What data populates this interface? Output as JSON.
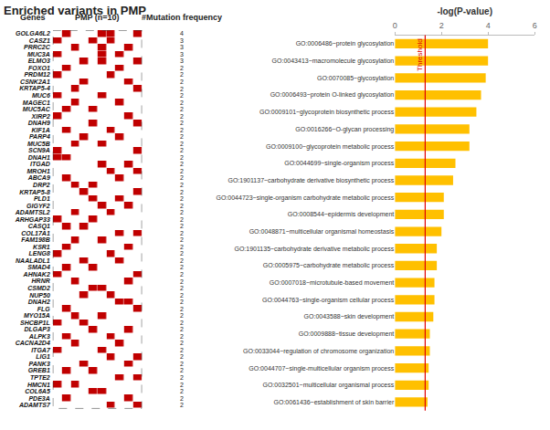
{
  "chart_data": [
    {
      "type": "heatmap",
      "title": "Enriched variants in PMP",
      "y_label": "Genes",
      "x_label": "PMP (n=10)",
      "frequency_label": "#Mutation frequency",
      "color": "#c00000",
      "tick_labels": "y",
      "categories": [
        "GOLGA6L2",
        "CASZ1",
        "PRRC2C",
        "MUC3A",
        "ELMO3",
        "FOXO1",
        "PRDM12",
        "CSNK2A1",
        "KRTAP5-4",
        "MUC6",
        "MAGEC1",
        "MUC5AC",
        "XIRP2",
        "DNAH9",
        "KIF1A",
        "PARP4",
        "MUC5B",
        "SCN9A",
        "DNAH1",
        "ITGAD",
        "MROH1",
        "ABCA9",
        "DRP2",
        "KRTAP5-8",
        "PLD1",
        "GIGYF2",
        "ADAMTSL2",
        "ARHGAP33",
        "CASQ1",
        "COL17A1",
        "FAM198B",
        "KSR1",
        "LENG8",
        "NAALADL1",
        "SMAD4",
        "AHNAK2",
        "HRNR",
        "CSMD2",
        "NUP50",
        "DNAH2",
        "FLG",
        "MYO15A",
        "SHCBP1L",
        "DLGAP3",
        "ALPK3",
        "CACNA2D4",
        "ITGA7",
        "LIG1",
        "PANK3",
        "GREB1",
        "TPTE2",
        "HMCN1",
        "COL6A5",
        "PDE3A",
        "ADAMTS7"
      ],
      "values": [
        4,
        3,
        3,
        3,
        3,
        2,
        2,
        2,
        2,
        2,
        2,
        2,
        2,
        2,
        2,
        2,
        2,
        2,
        2,
        2,
        2,
        2,
        2,
        2,
        2,
        2,
        2,
        2,
        2,
        2,
        2,
        2,
        2,
        2,
        2,
        2,
        2,
        2,
        2,
        2,
        2,
        2,
        2,
        2,
        2,
        2,
        2,
        2,
        2,
        2,
        2,
        2,
        2,
        2,
        2
      ],
      "cells": [
        [
          0,
          1,
          0,
          0,
          0,
          1,
          1,
          0,
          0,
          1
        ],
        [
          1,
          0,
          0,
          0,
          1,
          0,
          1,
          0,
          0,
          0
        ],
        [
          0,
          0,
          1,
          0,
          0,
          1,
          0,
          0,
          1,
          0
        ],
        [
          1,
          0,
          0,
          0,
          0,
          1,
          0,
          1,
          0,
          0
        ],
        [
          0,
          0,
          0,
          1,
          0,
          1,
          0,
          0,
          0,
          1
        ],
        [
          0,
          1,
          0,
          0,
          0,
          0,
          0,
          1,
          0,
          0
        ],
        [
          1,
          0,
          0,
          0,
          0,
          0,
          1,
          0,
          0,
          0
        ],
        [
          0,
          0,
          0,
          1,
          0,
          0,
          0,
          0,
          1,
          0
        ],
        [
          0,
          0,
          1,
          0,
          0,
          0,
          0,
          0,
          0,
          1
        ],
        [
          1,
          0,
          0,
          0,
          0,
          1,
          0,
          0,
          0,
          0
        ],
        [
          0,
          0,
          1,
          0,
          0,
          0,
          0,
          1,
          0,
          0
        ],
        [
          0,
          1,
          0,
          0,
          1,
          0,
          0,
          0,
          0,
          0
        ],
        [
          1,
          0,
          0,
          0,
          0,
          0,
          0,
          0,
          1,
          0
        ],
        [
          0,
          0,
          0,
          0,
          1,
          0,
          0,
          0,
          0,
          1
        ],
        [
          0,
          1,
          0,
          0,
          0,
          0,
          1,
          0,
          0,
          0
        ],
        [
          0,
          0,
          0,
          1,
          0,
          0,
          0,
          1,
          0,
          0
        ],
        [
          0,
          0,
          1,
          0,
          0,
          1,
          0,
          0,
          0,
          0
        ],
        [
          1,
          0,
          0,
          0,
          0,
          0,
          0,
          0,
          0,
          1
        ],
        [
          1,
          1,
          0,
          0,
          0,
          0,
          0,
          0,
          0,
          0
        ],
        [
          0,
          0,
          0,
          0,
          0,
          1,
          0,
          0,
          1,
          0
        ],
        [
          0,
          0,
          0,
          0,
          0,
          0,
          1,
          0,
          0,
          1
        ],
        [
          0,
          1,
          0,
          0,
          0,
          0,
          0,
          1,
          0,
          0
        ],
        [
          0,
          0,
          1,
          0,
          1,
          0,
          0,
          0,
          0,
          0
        ],
        [
          0,
          0,
          0,
          1,
          0,
          0,
          0,
          0,
          0,
          1
        ],
        [
          0,
          0,
          0,
          0,
          1,
          0,
          0,
          1,
          0,
          0
        ],
        [
          0,
          0,
          0,
          0,
          0,
          1,
          0,
          0,
          1,
          0
        ],
        [
          0,
          0,
          1,
          0,
          0,
          0,
          1,
          0,
          0,
          0
        ],
        [
          1,
          0,
          0,
          0,
          1,
          0,
          0,
          0,
          0,
          0
        ],
        [
          0,
          1,
          0,
          1,
          0,
          0,
          0,
          0,
          0,
          0
        ],
        [
          0,
          0,
          0,
          0,
          0,
          0,
          0,
          1,
          0,
          1
        ],
        [
          0,
          0,
          1,
          0,
          0,
          1,
          0,
          0,
          0,
          0
        ],
        [
          0,
          1,
          0,
          0,
          0,
          0,
          0,
          0,
          1,
          0
        ],
        [
          1,
          0,
          0,
          0,
          0,
          0,
          1,
          0,
          0,
          0
        ],
        [
          0,
          0,
          0,
          1,
          0,
          0,
          0,
          1,
          0,
          0
        ],
        [
          0,
          1,
          0,
          0,
          1,
          0,
          0,
          0,
          0,
          0
        ],
        [
          1,
          0,
          0,
          0,
          0,
          0,
          0,
          0,
          0,
          1
        ],
        [
          0,
          0,
          1,
          0,
          0,
          0,
          0,
          0,
          1,
          0
        ],
        [
          0,
          0,
          0,
          0,
          1,
          1,
          0,
          0,
          0,
          0
        ],
        [
          0,
          0,
          0,
          1,
          0,
          0,
          1,
          0,
          0,
          0
        ],
        [
          0,
          0,
          0,
          0,
          0,
          0,
          0,
          1,
          1,
          0
        ],
        [
          0,
          1,
          0,
          0,
          0,
          0,
          0,
          0,
          0,
          1
        ],
        [
          0,
          0,
          1,
          0,
          0,
          1,
          0,
          0,
          0,
          0
        ],
        [
          1,
          0,
          0,
          1,
          0,
          0,
          0,
          0,
          0,
          0
        ],
        [
          0,
          0,
          0,
          0,
          1,
          0,
          0,
          0,
          1,
          0
        ],
        [
          0,
          1,
          0,
          0,
          0,
          0,
          1,
          0,
          0,
          0
        ],
        [
          0,
          0,
          1,
          0,
          0,
          0,
          0,
          1,
          0,
          0
        ],
        [
          1,
          0,
          0,
          0,
          0,
          1,
          0,
          0,
          0,
          0
        ],
        [
          0,
          0,
          0,
          0,
          0,
          0,
          1,
          0,
          0,
          1
        ],
        [
          0,
          0,
          0,
          1,
          0,
          0,
          0,
          0,
          1,
          0
        ],
        [
          0,
          1,
          0,
          0,
          1,
          0,
          0,
          0,
          0,
          0
        ],
        [
          0,
          0,
          0,
          0,
          0,
          0,
          0,
          1,
          0,
          1
        ],
        [
          1,
          0,
          1,
          0,
          0,
          0,
          0,
          0,
          0,
          0
        ],
        [
          0,
          0,
          0,
          0,
          1,
          1,
          0,
          0,
          0,
          0
        ],
        [
          0,
          1,
          0,
          0,
          0,
          0,
          0,
          0,
          1,
          0
        ],
        [
          0,
          0,
          0,
          0,
          0,
          0,
          1,
          0,
          0,
          1
        ]
      ]
    },
    {
      "type": "bar",
      "orientation": "horizontal",
      "x_label": "-log(P-value)",
      "color": "#ffc000",
      "xlim": [
        0,
        6
      ],
      "xticks": [
        0,
        2,
        4,
        6
      ],
      "threshold": {
        "value": 1.3,
        "label": "Threshold",
        "color": "#e00000"
      },
      "categories": [
        "GO:0006486~protein glycosylation",
        "GO:0043413~macromolecule glycosylation",
        "GO:0070085~glycosylation",
        "GO:0006493~protein O-linked glycosylation",
        "GO:0009101~glycoprotein biosynthetic process",
        "GO:0016266~O-glycan processing",
        "GO:0009100~glycoprotein metabolic process",
        "GO:0044699~single-organism process",
        "GO:1901137~carbohydrate derivative biosynthetic process",
        "GO:0044723~single-organism carbohydrate metabolic process",
        "GO:0008544~epidermis development",
        "GO:0048871~multicellular organismal homeostasis",
        "GO:1901135~carbohydrate derivative metabolic process",
        "GO:0005975~carbohydrate metabolic process",
        "GO:0007018~microtubule-based movement",
        "GO:0044763~single-organism cellular process",
        "GO:0043588~skin development",
        "GO:0009888~tissue development",
        "GO:0033044~regulation of chromosome organization",
        "GO:0044707~single-multicellular organism process",
        "GO:0032501~multicellular organismal process",
        "GO:0061436~establishment of skin barrier"
      ],
      "values": [
        4.0,
        4.0,
        3.9,
        3.7,
        3.5,
        3.2,
        3.2,
        2.6,
        2.5,
        2.1,
        2.1,
        2.0,
        1.8,
        1.8,
        1.7,
        1.7,
        1.65,
        1.5,
        1.5,
        1.45,
        1.45,
        1.4
      ]
    }
  ]
}
